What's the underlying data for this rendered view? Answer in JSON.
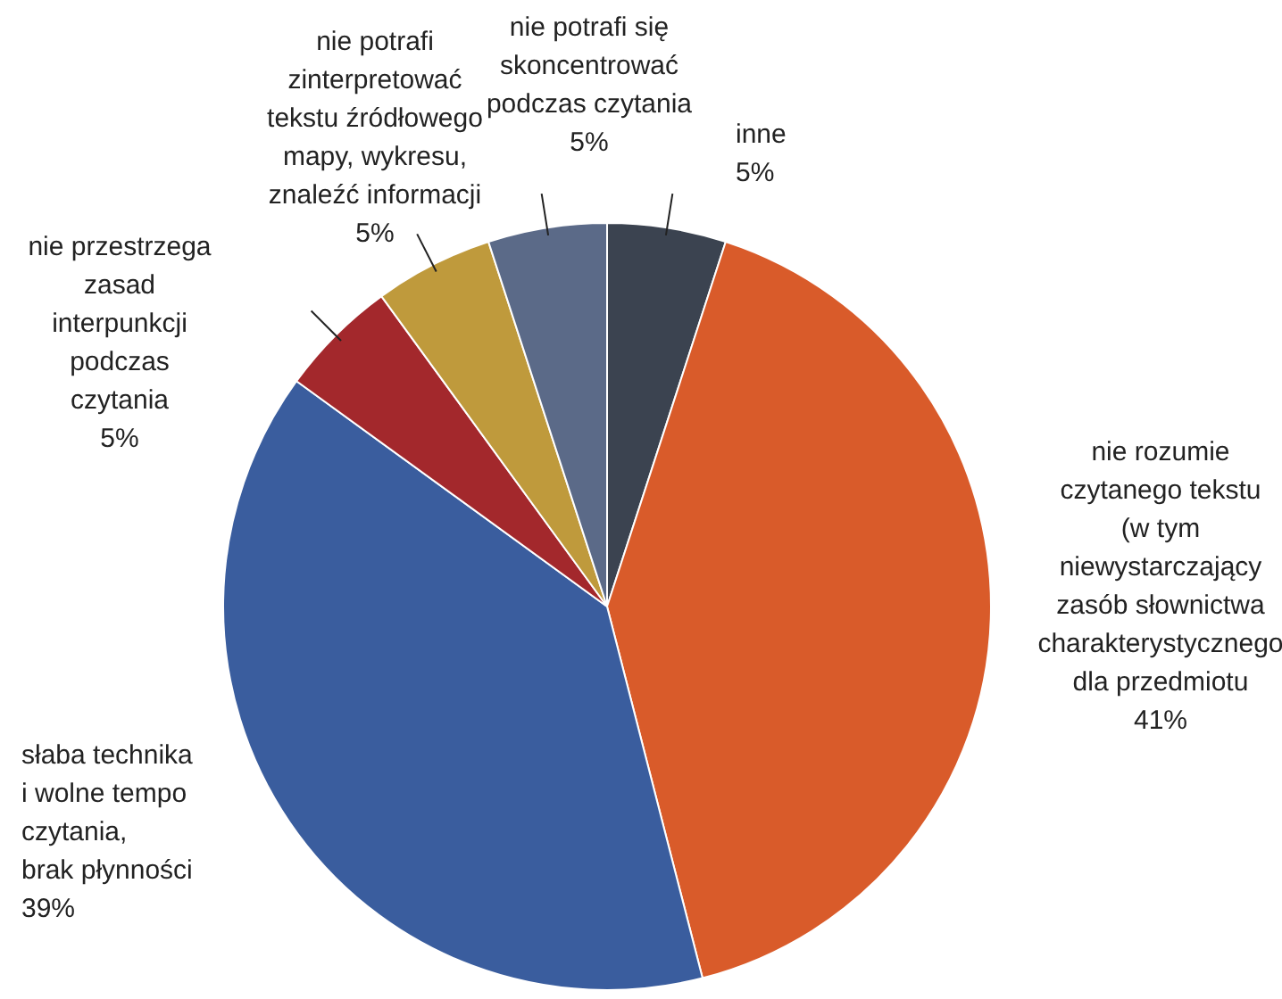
{
  "chart_data": {
    "type": "pie",
    "categories": [
      "inne",
      "nie rozumie\nczytanego tekstu\n(w tym\nniewystarczający\nzasób słownictwa\ncharakterystycznego\ndla przedmiotu",
      "słaba technika\ni wolne tempo\nczytania,\nbrak płynności",
      "nie przestrzega\nzasad\ninterpunkcji\npodczas\nczytania",
      "nie potrafi\nzinterpretować\ntekstu źródłowego\nmapy, wykresu,\nznaleźć informacji",
      "nie potrafi się\nskoncentrować\npodczas czytania"
    ],
    "values": [
      5,
      41,
      39,
      5,
      5,
      5
    ],
    "value_labels": [
      "5%",
      "41%",
      "39%",
      "5%",
      "5%",
      "5%"
    ],
    "colors": [
      "#3b4350",
      "#d95b2a",
      "#3a5d9e",
      "#a3282c",
      "#bf9a3c",
      "#5b6a88"
    ]
  }
}
